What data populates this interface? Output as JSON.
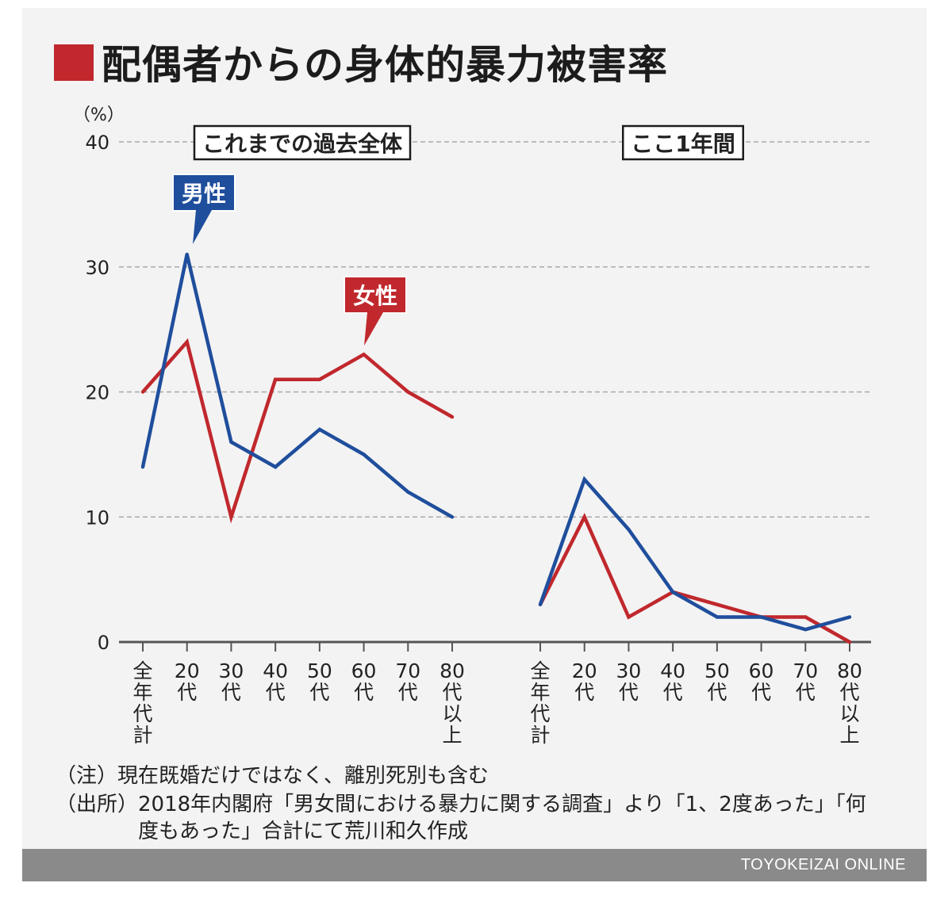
{
  "title": "配偶者からの身体的暴力被害率",
  "colors": {
    "male": "#1f4e9c",
    "female": "#c0282d",
    "axis": "#555555",
    "grid": "#aaaaaa",
    "text": "#222222"
  },
  "chart_data": {
    "type": "line",
    "unit_label": "（%）",
    "ylim": [
      0,
      40
    ],
    "yticks": [
      0,
      10,
      20,
      30,
      40
    ],
    "grid": true,
    "legend_labels": {
      "male": "男性",
      "female": "女性"
    },
    "panels": [
      {
        "title": "これまでの過去全体",
        "categories": [
          "全年代計",
          "20代",
          "30代",
          "40代",
          "50代",
          "60代",
          "70代",
          "80代以上"
        ],
        "series": [
          {
            "name": "男性",
            "values": [
              14,
              31,
              16,
              14,
              17,
              15,
              12,
              10
            ]
          },
          {
            "name": "女性",
            "values": [
              20,
              24,
              10,
              21,
              21,
              23,
              20,
              18
            ]
          }
        ]
      },
      {
        "title": "ここ1年間",
        "categories": [
          "全年代計",
          "20代",
          "30代",
          "40代",
          "50代",
          "60代",
          "70代",
          "80代以上"
        ],
        "series": [
          {
            "name": "男性",
            "values": [
              3,
              13,
              9,
              4,
              2,
              2,
              1,
              2
            ]
          },
          {
            "name": "女性",
            "values": [
              3,
              10,
              2,
              4,
              3,
              2,
              2,
              0
            ]
          }
        ]
      }
    ]
  },
  "notes": [
    "（注）現在既婚だけではなく、離別死別も含む",
    "（出所）2018年内閣府「男女間における暴力に関する調査」より「1、2度あった」「何",
    "　　　　度もあった」合計にて荒川和久作成"
  ],
  "footer": "TOYOKEIZAI ONLINE"
}
